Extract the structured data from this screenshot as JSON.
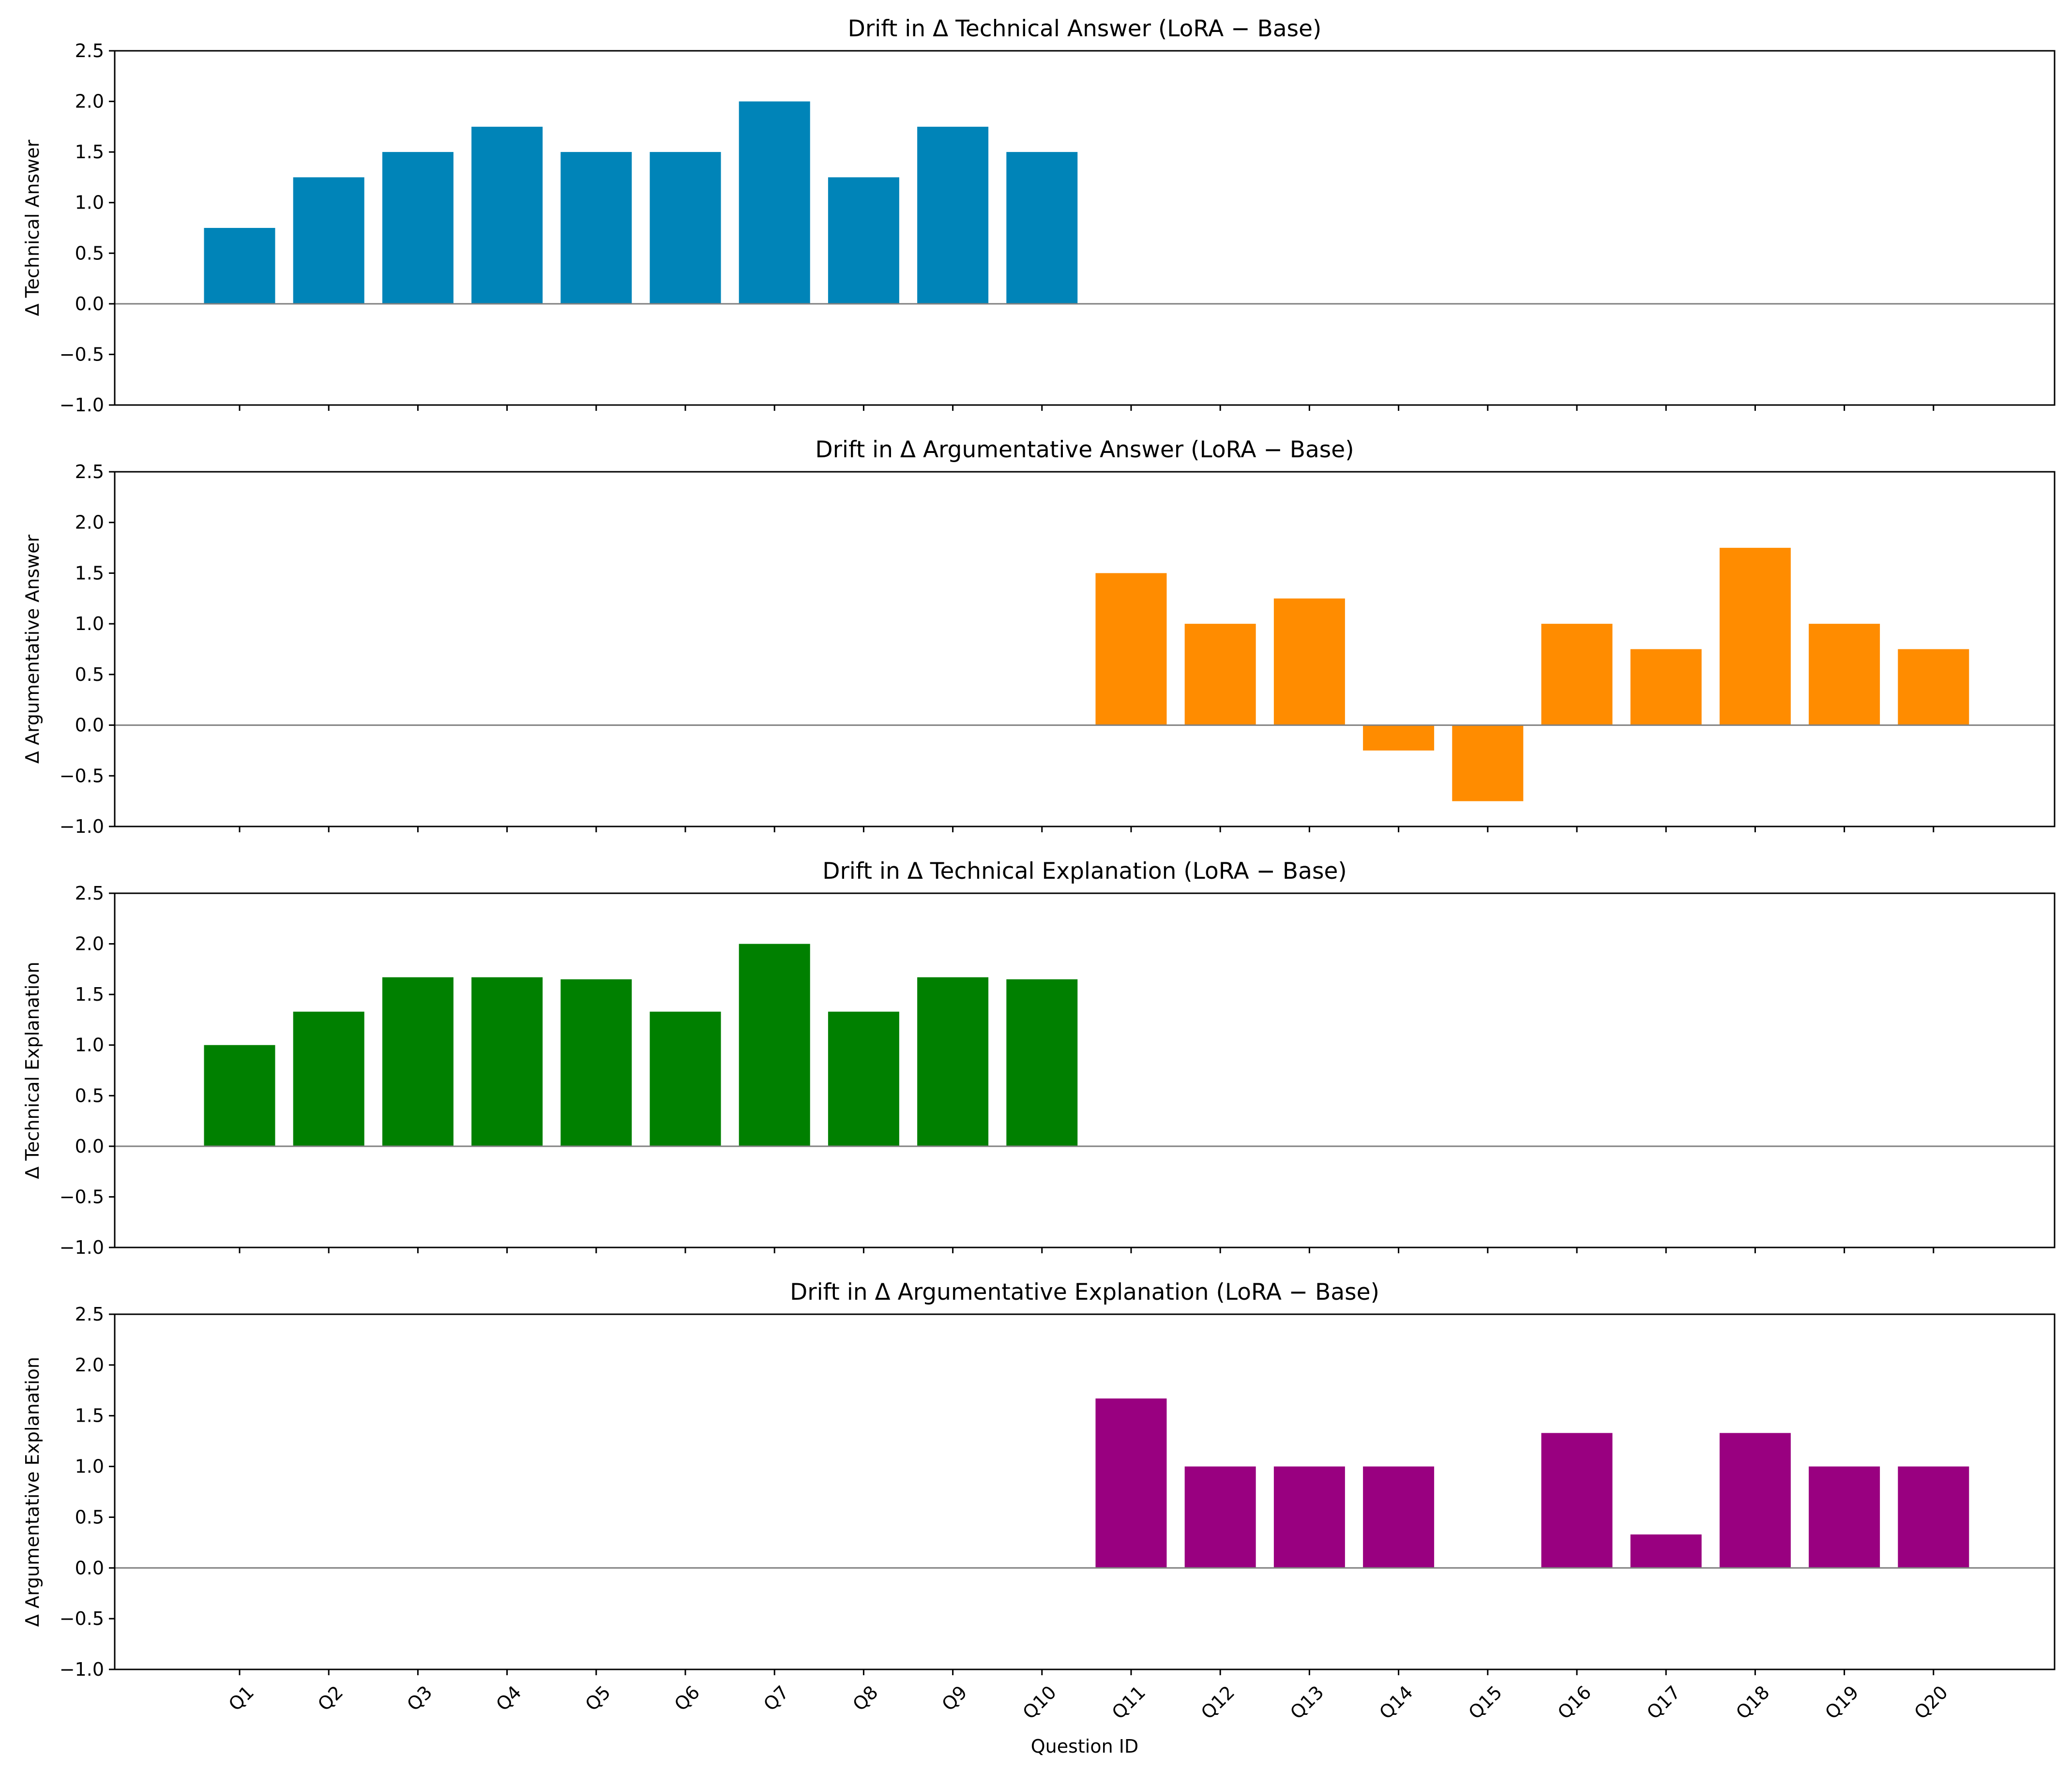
{
  "chart_data": [
    {
      "type": "bar",
      "title": "Drift in Δ Technical Answer (LoRA − Base)",
      "xlabel": "",
      "ylabel": "Δ Technical Answer",
      "color": "#0084b8",
      "categories": [
        "Q1",
        "Q2",
        "Q3",
        "Q4",
        "Q5",
        "Q6",
        "Q7",
        "Q8",
        "Q9",
        "Q10",
        "Q11",
        "Q12",
        "Q13",
        "Q14",
        "Q15",
        "Q16",
        "Q17",
        "Q18",
        "Q19",
        "Q20"
      ],
      "values": [
        0.75,
        1.25,
        1.5,
        1.75,
        1.5,
        1.5,
        2.0,
        1.25,
        1.75,
        1.5,
        null,
        null,
        null,
        null,
        null,
        null,
        null,
        null,
        null,
        null
      ],
      "ylim": [
        -1.0,
        2.5
      ],
      "yticks": [
        "−1.0",
        "−0.5",
        "0.0",
        "0.5",
        "1.0",
        "1.5",
        "2.0",
        "2.5"
      ],
      "show_xtick_labels": false
    },
    {
      "type": "bar",
      "title": "Drift in Δ Argumentative Answer (LoRA − Base)",
      "xlabel": "",
      "ylabel": "Δ Argumentative Answer",
      "color": "#ff8c00",
      "categories": [
        "Q1",
        "Q2",
        "Q3",
        "Q4",
        "Q5",
        "Q6",
        "Q7",
        "Q8",
        "Q9",
        "Q10",
        "Q11",
        "Q12",
        "Q13",
        "Q14",
        "Q15",
        "Q16",
        "Q17",
        "Q18",
        "Q19",
        "Q20"
      ],
      "values": [
        null,
        null,
        null,
        null,
        null,
        null,
        null,
        null,
        null,
        null,
        1.5,
        1.0,
        1.25,
        -0.25,
        -0.75,
        1.0,
        0.75,
        1.75,
        1.0,
        0.75
      ],
      "ylim": [
        -1.0,
        2.5
      ],
      "yticks": [
        "−1.0",
        "−0.5",
        "0.0",
        "0.5",
        "1.0",
        "1.5",
        "2.0",
        "2.5"
      ],
      "show_xtick_labels": false
    },
    {
      "type": "bar",
      "title": "Drift in Δ Technical Explanation (LoRA − Base)",
      "xlabel": "",
      "ylabel": "Δ Technical Explanation",
      "color": "#008000",
      "categories": [
        "Q1",
        "Q2",
        "Q3",
        "Q4",
        "Q5",
        "Q6",
        "Q7",
        "Q8",
        "Q9",
        "Q10",
        "Q11",
        "Q12",
        "Q13",
        "Q14",
        "Q15",
        "Q16",
        "Q17",
        "Q18",
        "Q19",
        "Q20"
      ],
      "values": [
        1.0,
        1.33,
        1.67,
        1.67,
        1.65,
        1.33,
        2.0,
        1.33,
        1.67,
        1.65,
        null,
        null,
        null,
        null,
        null,
        null,
        null,
        null,
        null,
        null
      ],
      "ylim": [
        -1.0,
        2.5
      ],
      "yticks": [
        "−1.0",
        "−0.5",
        "0.0",
        "0.5",
        "1.0",
        "1.5",
        "2.0",
        "2.5"
      ],
      "show_xtick_labels": false
    },
    {
      "type": "bar",
      "title": "Drift in Δ Argumentative Explanation (LoRA − Base)",
      "xlabel": "Question ID",
      "ylabel": "Δ Argumentative Explanation",
      "color": "#990080",
      "categories": [
        "Q1",
        "Q2",
        "Q3",
        "Q4",
        "Q5",
        "Q6",
        "Q7",
        "Q8",
        "Q9",
        "Q10",
        "Q11",
        "Q12",
        "Q13",
        "Q14",
        "Q15",
        "Q16",
        "Q17",
        "Q18",
        "Q19",
        "Q20"
      ],
      "values": [
        null,
        null,
        null,
        null,
        null,
        null,
        null,
        null,
        null,
        null,
        1.67,
        1.0,
        1.0,
        1.0,
        0.0,
        1.33,
        0.33,
        1.33,
        1.0,
        1.0
      ],
      "ylim": [
        -1.0,
        2.5
      ],
      "yticks": [
        "−1.0",
        "−0.5",
        "0.0",
        "0.5",
        "1.0",
        "1.5",
        "2.0",
        "2.5"
      ],
      "show_xtick_labels": true
    }
  ]
}
